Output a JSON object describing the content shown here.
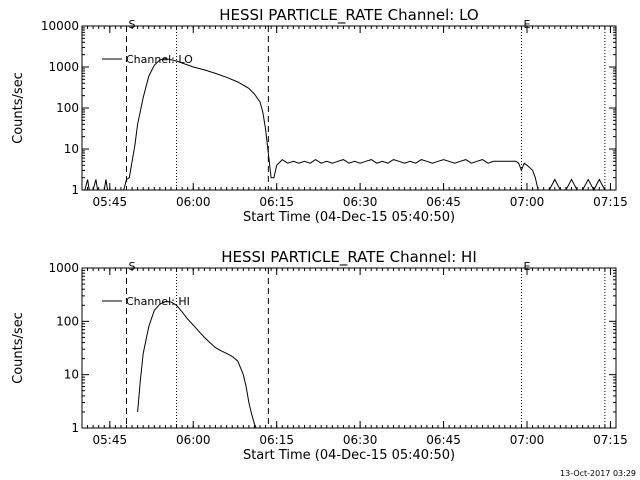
{
  "chart_data": [
    {
      "type": "line",
      "title": "HESSI PARTICLE_RATE Channel: LO",
      "xlabel": "Start Time (04-Dec-15 05:40:50)",
      "ylabel": "Counts/sec",
      "yscale": "log",
      "ylim": [
        1,
        10000
      ],
      "yticks": [
        1,
        10,
        100,
        1000,
        10000
      ],
      "ytick_labels": [
        "1",
        "10",
        "100",
        "1000",
        "10000"
      ],
      "xlim_minutes": [
        0,
        96
      ],
      "xticks_minutes": [
        5,
        20,
        35,
        50,
        65,
        80,
        95
      ],
      "xtick_labels": [
        "05:45",
        "06:00",
        "06:15",
        "06:30",
        "06:45",
        "07:00",
        "07:15"
      ],
      "legend": "Channel: LO",
      "legend_position": "upper-left",
      "start_label": "S",
      "end_label": "E",
      "dashed_lines_minutes": [
        8,
        33.5
      ],
      "dotted_lines_minutes": [
        17,
        79,
        94
      ],
      "start_marker_minutes": 8,
      "end_marker_minutes": 79,
      "series": [
        {
          "name": "Channel: LO",
          "x": [
            0,
            0.5,
            1,
            1.3,
            1.6,
            2,
            2.5,
            2.8,
            3.1,
            3.5,
            4,
            4.3,
            4.6,
            5,
            5.5,
            6,
            6.5,
            7,
            7.5,
            8,
            8.5,
            9,
            9.5,
            10,
            11,
            12,
            13,
            14,
            15,
            16,
            17,
            18,
            20,
            22,
            24,
            26,
            28,
            30,
            31,
            32,
            32.5,
            33,
            33.5,
            34,
            34.5,
            35,
            36,
            37,
            38,
            39,
            40,
            41,
            42,
            43,
            44,
            45,
            46,
            47,
            48,
            49,
            50,
            51,
            52,
            53,
            54,
            55,
            56,
            57,
            58,
            59,
            60,
            61,
            62,
            63,
            64,
            65,
            66,
            67,
            68,
            69,
            70,
            71,
            72,
            73,
            74,
            75,
            76,
            77,
            78,
            78.5,
            79,
            79.5,
            80,
            80.5,
            81,
            81.5,
            82,
            82.5,
            83,
            84,
            85,
            86,
            87,
            88,
            89,
            90,
            91,
            92,
            93,
            94,
            95,
            96
          ],
          "y": [
            1,
            1,
            1.8,
            1,
            1,
            1,
            1.8,
            1,
            1,
            1,
            1,
            1.8,
            1,
            1,
            1,
            1,
            1,
            1,
            1,
            1.8,
            2,
            5,
            12,
            40,
            180,
            600,
            1100,
            1500,
            1600,
            1500,
            1400,
            1250,
            1000,
            850,
            700,
            560,
            430,
            300,
            220,
            140,
            80,
            30,
            8,
            2,
            2,
            4,
            5.5,
            4.5,
            5,
            4.5,
            5,
            4.5,
            5.5,
            4.5,
            5,
            4.5,
            5,
            5.5,
            4.5,
            5,
            4.5,
            5,
            5.5,
            4.5,
            5,
            4.5,
            5.5,
            5,
            4.5,
            5,
            4.5,
            5.5,
            5,
            4.5,
            5,
            5.5,
            5,
            4.5,
            5,
            5.5,
            4.5,
            5,
            5.5,
            4.5,
            5,
            5,
            5,
            5,
            5,
            4.5,
            3,
            4.5,
            4,
            3.5,
            3,
            2,
            1,
            1,
            1,
            1,
            1.8,
            1,
            1,
            1.8,
            1,
            1,
            1.8,
            1,
            1.8,
            1,
            1,
            1
          ]
        }
      ]
    },
    {
      "type": "line",
      "title": "HESSI PARTICLE_RATE Channel: HI",
      "xlabel": "Start Time (04-Dec-15 05:40:50)",
      "ylabel": "Counts/sec",
      "yscale": "log",
      "ylim": [
        1,
        1000
      ],
      "yticks": [
        1,
        10,
        100,
        1000
      ],
      "ytick_labels": [
        "1",
        "10",
        "100",
        "1000"
      ],
      "xlim_minutes": [
        0,
        96
      ],
      "xticks_minutes": [
        5,
        20,
        35,
        50,
        65,
        80,
        95
      ],
      "xtick_labels": [
        "05:45",
        "06:00",
        "06:15",
        "06:30",
        "06:45",
        "07:00",
        "07:15"
      ],
      "legend": "Channel: HI",
      "legend_position": "upper-left",
      "start_label": "S",
      "end_label": "E",
      "dashed_lines_minutes": [
        8,
        33.5
      ],
      "dotted_lines_minutes": [
        17,
        79,
        94
      ],
      "start_marker_minutes": 8,
      "end_marker_minutes": 79,
      "series": [
        {
          "name": "Channel: HI",
          "x": [
            10,
            10.5,
            11,
            12,
            13,
            14,
            15,
            16,
            17,
            18,
            19,
            20,
            21,
            22,
            23,
            24,
            25,
            26,
            27,
            28,
            29,
            29.5,
            30,
            30.5,
            31,
            31.3
          ],
          "y": [
            2,
            8,
            25,
            80,
            160,
            210,
            235,
            230,
            200,
            150,
            110,
            85,
            65,
            50,
            40,
            32,
            28,
            25,
            22,
            18,
            10,
            6,
            3,
            1.8,
            1.2,
            1
          ]
        }
      ]
    }
  ],
  "timestamp": "13-Oct-2017 03:29"
}
